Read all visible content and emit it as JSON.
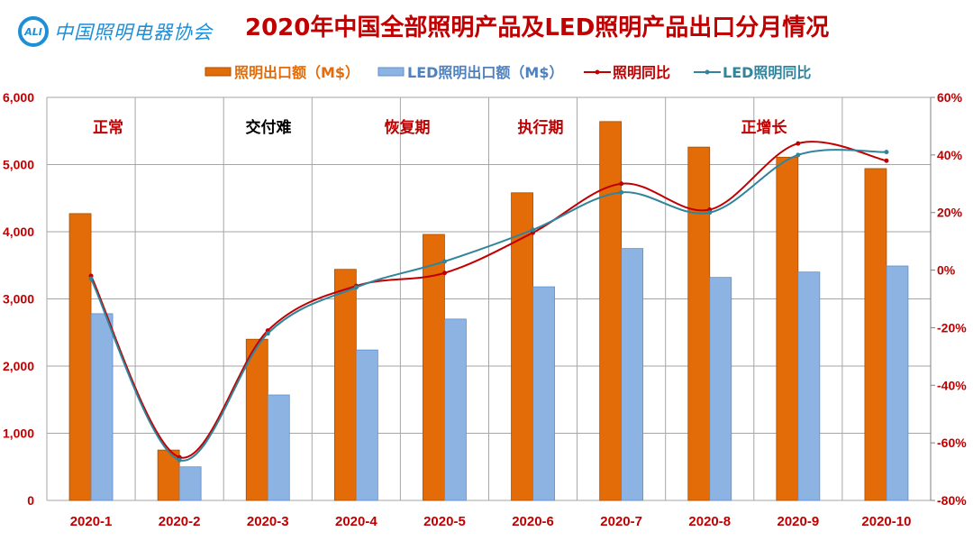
{
  "logo": {
    "text": "中国照明电器协会",
    "mark": "CALI"
  },
  "chart_data": {
    "type": "bar+line",
    "title": "2020年中国全部照明产品及LED照明产品出口分月情况",
    "categories": [
      "2020-1",
      "2020-2",
      "2020-3",
      "2020-4",
      "2020-5",
      "2020-6",
      "2020-7",
      "2020-8",
      "2020-9",
      "2020-10"
    ],
    "series": [
      {
        "name": "照明出口额（M$）",
        "type": "bar",
        "axis": "left",
        "color": "#e36c09",
        "values": [
          4270,
          750,
          2400,
          3440,
          3960,
          4580,
          5640,
          5260,
          5110,
          4940
        ]
      },
      {
        "name": "LED照明出口额（M$）",
        "type": "bar",
        "axis": "left",
        "color": "#8db3e2",
        "values": [
          2780,
          500,
          1570,
          2240,
          2700,
          3180,
          3750,
          3320,
          3400,
          3490
        ]
      },
      {
        "name": "照明同比",
        "type": "line",
        "axis": "right",
        "color": "#c00000",
        "values": [
          -2,
          -65,
          -21,
          -5.5,
          -1,
          13,
          30,
          21,
          44,
          38
        ]
      },
      {
        "name": "LED照明同比",
        "type": "line",
        "axis": "right",
        "color": "#31849b",
        "values": [
          -3,
          -66,
          -22,
          -6,
          3,
          14,
          27,
          20,
          40,
          41
        ]
      }
    ],
    "left_axis": {
      "min": 0,
      "max": 6000,
      "step": 1000,
      "ticks": [
        "0",
        "1,000",
        "2,000",
        "3,000",
        "4,000",
        "5,000",
        "6,000"
      ]
    },
    "right_axis": {
      "min": -80,
      "max": 60,
      "step": 20,
      "ticks": [
        "-80%",
        "-60%",
        "-40%",
        "-20%",
        "0%",
        "20%",
        "40%",
        "60%"
      ]
    },
    "grid": true,
    "legend_position": "top",
    "annotations": [
      {
        "text": "正常",
        "color": "#c00000"
      },
      {
        "text": "交付难",
        "color": "#000000"
      },
      {
        "text": "恢复期",
        "color": "#c00000"
      },
      {
        "text": "执行期",
        "color": "#c00000"
      },
      {
        "text": "正增长",
        "color": "#c00000"
      }
    ]
  }
}
